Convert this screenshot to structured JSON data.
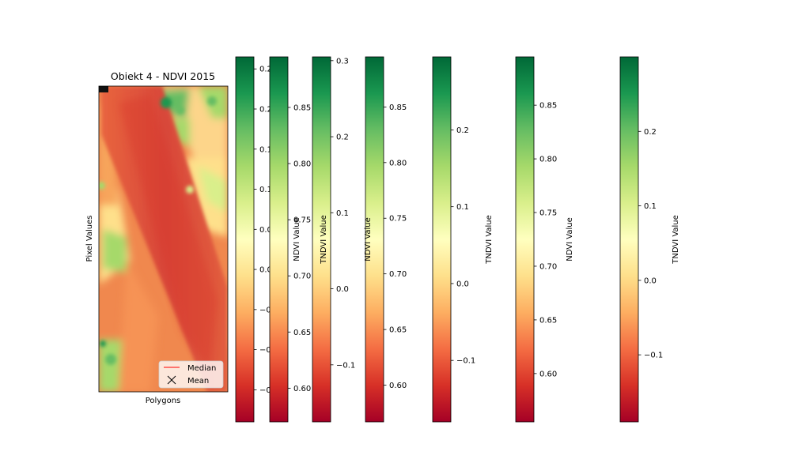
{
  "chart_data": {
    "type": "heatmap",
    "title": "Obiekt 4 - NDVI 2015",
    "xlabel": "Polygons",
    "ylabel": "Pixel Values",
    "colormap": "RdYlGn",
    "colormap_stops": [
      "#a50026",
      "#d73027",
      "#f46d43",
      "#fdae61",
      "#fee08b",
      "#ffffbf",
      "#d9ef8b",
      "#a6d96a",
      "#66bd63",
      "#1a9850",
      "#006837"
    ],
    "legend": {
      "position": "lower right",
      "entries": [
        {
          "label": "Median",
          "marker": "line",
          "color": "#ff0000"
        },
        {
          "label": "Mean",
          "marker": "x",
          "color": "#000000"
        }
      ]
    },
    "colorbars": [
      {
        "label": "",
        "range": [
          -0.19,
          0.265
        ],
        "ticks": [
          -0.15,
          -0.1,
          -0.05,
          0.0,
          0.05,
          0.1,
          0.15,
          0.2,
          0.25
        ],
        "tick_labels": [
          "−0.15",
          "−0.10",
          "−0.05",
          "0.00",
          "0.05",
          "0.10",
          "0.15",
          "0.20",
          "0.25"
        ]
      },
      {
        "label": "NDVI Value",
        "range": [
          0.57,
          0.895
        ],
        "ticks": [
          0.6,
          0.65,
          0.7,
          0.75,
          0.8,
          0.85
        ],
        "tick_labels": [
          "0.60",
          "0.65",
          "0.70",
          "0.75",
          "0.80",
          "0.85"
        ]
      },
      {
        "label": "TNDVI Value",
        "range": [
          -0.175,
          0.305
        ],
        "ticks": [
          -0.1,
          0.0,
          0.1,
          0.2,
          0.3
        ],
        "tick_labels": [
          "−0.1",
          "0.0",
          "0.1",
          "0.2",
          "0.3"
        ]
      },
      {
        "label": "NDVI Value",
        "range": [
          0.567,
          0.895
        ],
        "ticks": [
          0.6,
          0.65,
          0.7,
          0.75,
          0.8,
          0.85
        ],
        "tick_labels": [
          "0.60",
          "0.65",
          "0.70",
          "0.75",
          "0.80",
          "0.85"
        ]
      },
      {
        "label": "TNDVI Value",
        "range": [
          -0.18,
          0.295
        ],
        "ticks": [
          -0.1,
          0.0,
          0.1,
          0.2
        ],
        "tick_labels": [
          "−0.1",
          "0.0",
          "0.1",
          "0.2"
        ]
      },
      {
        "label": "NDVI Value",
        "range": [
          0.555,
          0.895
        ],
        "ticks": [
          0.6,
          0.65,
          0.7,
          0.75,
          0.8,
          0.85
        ],
        "tick_labels": [
          "0.60",
          "0.65",
          "0.70",
          "0.75",
          "0.80",
          "0.85"
        ]
      },
      {
        "label": "TNDVI Value",
        "range": [
          -0.19,
          0.3
        ],
        "ticks": [
          -0.1,
          0.0,
          0.1,
          0.2
        ],
        "tick_labels": [
          "−0.1",
          "0.0",
          "0.1",
          "0.2"
        ]
      }
    ]
  }
}
